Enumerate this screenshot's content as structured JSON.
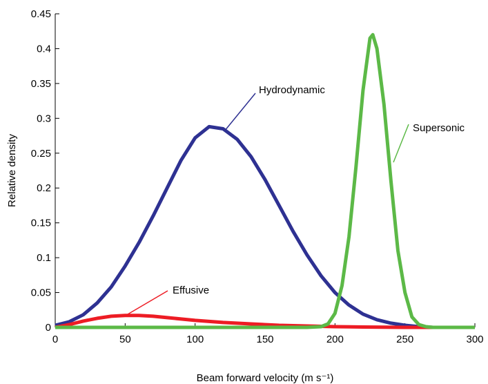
{
  "chart_data": {
    "type": "line",
    "xlabel": "Beam forward velocity (m s⁻¹)",
    "ylabel": "Relative density",
    "xlim": [
      0,
      300
    ],
    "ylim": [
      0,
      0.45
    ],
    "xticks": [
      0,
      50,
      100,
      150,
      200,
      250,
      300
    ],
    "yticks": [
      0,
      0.05,
      0.1,
      0.15,
      0.2,
      0.25,
      0.3,
      0.35,
      0.4,
      0.45
    ],
    "grid": false,
    "series": [
      {
        "name": "Hydrodynamic",
        "color": "#2e3192",
        "x": [
          0,
          10,
          20,
          30,
          40,
          50,
          60,
          70,
          80,
          90,
          100,
          110,
          120,
          130,
          140,
          150,
          160,
          170,
          180,
          190,
          200,
          210,
          220,
          230,
          240,
          250,
          260,
          270,
          300
        ],
        "values": [
          0.003,
          0.008,
          0.018,
          0.035,
          0.058,
          0.088,
          0.122,
          0.16,
          0.2,
          0.24,
          0.272,
          0.288,
          0.285,
          0.27,
          0.245,
          0.212,
          0.175,
          0.138,
          0.104,
          0.074,
          0.05,
          0.032,
          0.019,
          0.011,
          0.006,
          0.003,
          0.001,
          0,
          0
        ]
      },
      {
        "name": "Effusive",
        "color": "#ed1c24",
        "x": [
          0,
          10,
          20,
          30,
          40,
          50,
          60,
          70,
          80,
          90,
          100,
          120,
          140,
          160,
          180,
          200,
          220,
          250,
          300
        ],
        "values": [
          0,
          0.004,
          0.009,
          0.013,
          0.016,
          0.017,
          0.017,
          0.016,
          0.014,
          0.012,
          0.01,
          0.007,
          0.005,
          0.003,
          0.002,
          0.001,
          0.0005,
          0,
          0
        ]
      },
      {
        "name": "Supersonic",
        "color": "#5cb947",
        "x": [
          0,
          180,
          190,
          195,
          200,
          205,
          210,
          215,
          220,
          225,
          227,
          230,
          235,
          240,
          245,
          250,
          255,
          260,
          265,
          270,
          300
        ],
        "values": [
          0,
          0,
          0.001,
          0.005,
          0.02,
          0.06,
          0.13,
          0.23,
          0.34,
          0.415,
          0.42,
          0.4,
          0.32,
          0.21,
          0.11,
          0.05,
          0.015,
          0.004,
          0.001,
          0,
          0
        ]
      }
    ]
  }
}
